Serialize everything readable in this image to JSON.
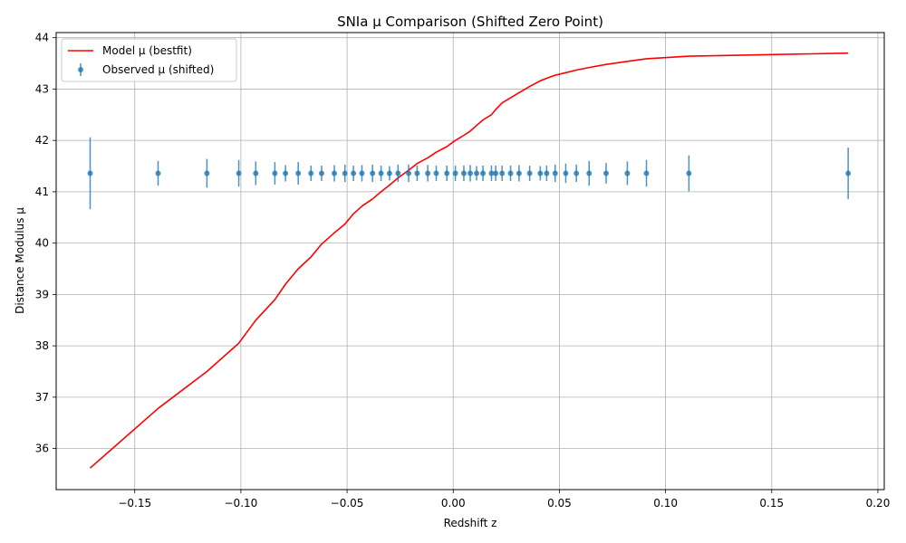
{
  "chart_data": {
    "type": "line",
    "title": "SNIa μ Comparison (Shifted Zero Point)",
    "xlabel": "Redshift z",
    "ylabel": "Distance Modulus μ",
    "xlim": [
      -0.187,
      0.203
    ],
    "ylim": [
      35.2,
      44.1
    ],
    "xticks": [
      -0.15,
      -0.1,
      -0.05,
      0.0,
      0.05,
      0.1,
      0.15,
      0.2
    ],
    "xtick_labels": [
      "−0.15",
      "−0.10",
      "−0.05",
      "0.00",
      "0.05",
      "0.10",
      "0.15",
      "0.20"
    ],
    "yticks": [
      36,
      37,
      38,
      39,
      40,
      41,
      42,
      43,
      44
    ],
    "ytick_labels": [
      "36",
      "37",
      "38",
      "39",
      "40",
      "41",
      "42",
      "43",
      "44"
    ],
    "grid": true,
    "legend_position": "top-left",
    "series": [
      {
        "name": "Model μ (bestfit)",
        "kind": "line",
        "color": "#ff0000",
        "x": [
          -0.171,
          -0.139,
          -0.116,
          -0.101,
          -0.093,
          -0.084,
          -0.079,
          -0.073,
          -0.067,
          -0.062,
          -0.056,
          -0.051,
          -0.047,
          -0.043,
          -0.038,
          -0.034,
          -0.03,
          -0.026,
          -0.021,
          -0.017,
          -0.012,
          -0.008,
          -0.003,
          0.001,
          0.005,
          0.008,
          0.011,
          0.014,
          0.018,
          0.02,
          0.023,
          0.027,
          0.031,
          0.036,
          0.041,
          0.044,
          0.048,
          0.053,
          0.058,
          0.064,
          0.072,
          0.082,
          0.091,
          0.111,
          0.186
        ],
        "y": [
          35.62,
          36.78,
          37.5,
          38.05,
          38.5,
          38.9,
          39.2,
          39.5,
          39.73,
          39.98,
          40.2,
          40.37,
          40.57,
          40.72,
          40.86,
          41.0,
          41.13,
          41.27,
          41.42,
          41.55,
          41.66,
          41.77,
          41.88,
          42.0,
          42.1,
          42.18,
          42.29,
          42.4,
          42.5,
          42.6,
          42.73,
          42.83,
          42.93,
          43.05,
          43.16,
          43.21,
          43.27,
          43.32,
          43.37,
          43.42,
          43.48,
          43.54,
          43.59,
          43.64,
          43.7
        ]
      },
      {
        "name": "Observed μ (shifted)",
        "kind": "errorbar",
        "color": "#1f77b4",
        "x": [
          -0.171,
          -0.139,
          -0.116,
          -0.101,
          -0.093,
          -0.084,
          -0.079,
          -0.073,
          -0.067,
          -0.062,
          -0.056,
          -0.051,
          -0.047,
          -0.043,
          -0.038,
          -0.034,
          -0.03,
          -0.026,
          -0.021,
          -0.017,
          -0.012,
          -0.008,
          -0.003,
          0.001,
          0.005,
          0.008,
          0.011,
          0.014,
          0.018,
          0.02,
          0.023,
          0.027,
          0.031,
          0.036,
          0.041,
          0.044,
          0.048,
          0.053,
          0.058,
          0.064,
          0.072,
          0.082,
          0.091,
          0.111,
          0.186
        ],
        "y": [
          41.36,
          41.36,
          41.36,
          41.36,
          41.36,
          41.36,
          41.36,
          41.36,
          41.36,
          41.36,
          41.36,
          41.36,
          41.36,
          41.36,
          41.36,
          41.36,
          41.36,
          41.36,
          41.36,
          41.36,
          41.36,
          41.36,
          41.36,
          41.36,
          41.36,
          41.36,
          41.36,
          41.36,
          41.36,
          41.36,
          41.36,
          41.36,
          41.36,
          41.36,
          41.36,
          41.36,
          41.36,
          41.36,
          41.36,
          41.36,
          41.36,
          41.36,
          41.36,
          41.36,
          41.36
        ],
        "yerr": [
          0.7,
          0.24,
          0.28,
          0.26,
          0.23,
          0.22,
          0.16,
          0.22,
          0.15,
          0.15,
          0.16,
          0.17,
          0.15,
          0.16,
          0.17,
          0.15,
          0.14,
          0.17,
          0.17,
          0.15,
          0.16,
          0.15,
          0.15,
          0.15,
          0.15,
          0.16,
          0.14,
          0.15,
          0.15,
          0.15,
          0.15,
          0.15,
          0.16,
          0.15,
          0.14,
          0.15,
          0.17,
          0.19,
          0.17,
          0.24,
          0.2,
          0.23,
          0.26,
          0.35,
          0.5
        ]
      }
    ]
  }
}
